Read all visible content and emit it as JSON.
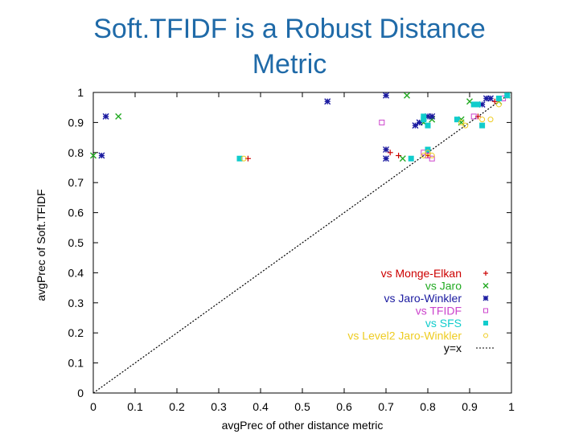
{
  "slide": {
    "title_line1": "Soft.TFIDF is a Robust Distance",
    "title_line2": "Metric",
    "title_color": "#1f6aa8"
  },
  "chart_data": {
    "type": "scatter",
    "title": "",
    "xlabel": "avgPrec of other distance metric",
    "ylabel": "avgPrec of Soft.TFIDF",
    "xlim": [
      0,
      1
    ],
    "ylim": [
      0,
      1
    ],
    "x_ticks": [
      "0",
      "0.1",
      "0.2",
      "0.3",
      "0.4",
      "0.5",
      "0.6",
      "0.7",
      "0.8",
      "0.9",
      "1"
    ],
    "y_ticks": [
      "0",
      "0.1",
      "0.2",
      "0.3",
      "0.4",
      "0.5",
      "0.6",
      "0.7",
      "0.8",
      "0.9",
      "1"
    ],
    "grid": false,
    "legend_position": "bottom-right",
    "series": [
      {
        "name": "vs Monge-Elkan",
        "color": "#cc0000",
        "marker": "plus",
        "points": [
          [
            0.37,
            0.78
          ],
          [
            0.7,
            0.81
          ],
          [
            0.71,
            0.8
          ],
          [
            0.73,
            0.79
          ],
          [
            0.8,
            0.79
          ],
          [
            0.81,
            0.92
          ],
          [
            0.92,
            0.92
          ],
          [
            0.96,
            0.97
          ],
          [
            0.99,
            0.99
          ]
        ]
      },
      {
        "name": "vs Jaro",
        "color": "#22aa22",
        "marker": "x",
        "points": [
          [
            0.0,
            0.79
          ],
          [
            0.06,
            0.92
          ],
          [
            0.75,
            0.99
          ],
          [
            0.74,
            0.78
          ],
          [
            0.79,
            0.9
          ],
          [
            0.81,
            0.91
          ],
          [
            0.88,
            0.9
          ],
          [
            0.88,
            0.91
          ],
          [
            0.9,
            0.97
          ],
          [
            0.97,
            0.97
          ],
          [
            0.99,
            0.99
          ]
        ]
      },
      {
        "name": "vs Jaro-Winkler",
        "color": "#1a1aa0",
        "marker": "star",
        "points": [
          [
            0.02,
            0.79
          ],
          [
            0.03,
            0.92
          ],
          [
            0.56,
            0.97
          ],
          [
            0.7,
            0.99
          ],
          [
            0.7,
            0.81
          ],
          [
            0.7,
            0.78
          ],
          [
            0.77,
            0.89
          ],
          [
            0.78,
            0.9
          ],
          [
            0.8,
            0.92
          ],
          [
            0.81,
            0.92
          ],
          [
            0.93,
            0.96
          ],
          [
            0.94,
            0.98
          ],
          [
            0.95,
            0.98
          ]
        ]
      },
      {
        "name": "vs TFIDF",
        "color": "#cc44cc",
        "marker": "square-open",
        "points": [
          [
            0.69,
            0.9
          ],
          [
            0.79,
            0.8
          ],
          [
            0.8,
            0.79
          ],
          [
            0.81,
            0.78
          ],
          [
            0.91,
            0.92
          ],
          [
            0.98,
            0.98
          ]
        ]
      },
      {
        "name": "vs SFS",
        "color": "#11cccc",
        "marker": "square",
        "points": [
          [
            0.35,
            0.78
          ],
          [
            0.76,
            0.78
          ],
          [
            0.79,
            0.92
          ],
          [
            0.79,
            0.91
          ],
          [
            0.8,
            0.89
          ],
          [
            0.8,
            0.81
          ],
          [
            0.87,
            0.91
          ],
          [
            0.91,
            0.96
          ],
          [
            0.92,
            0.96
          ],
          [
            0.93,
            0.89
          ],
          [
            0.97,
            0.98
          ],
          [
            0.99,
            0.99
          ]
        ]
      },
      {
        "name": "vs Level2 Jaro-Winkler",
        "color": "#eecc22",
        "marker": "circle",
        "points": [
          [
            0.36,
            0.78
          ],
          [
            0.79,
            0.79
          ],
          [
            0.8,
            0.8
          ],
          [
            0.81,
            0.79
          ],
          [
            0.88,
            0.9
          ],
          [
            0.89,
            0.89
          ],
          [
            0.93,
            0.91
          ],
          [
            0.95,
            0.91
          ],
          [
            0.97,
            0.96
          ]
        ]
      }
    ],
    "reference_line": {
      "name": "y=x",
      "color": "#000000",
      "style": "dotted"
    }
  }
}
